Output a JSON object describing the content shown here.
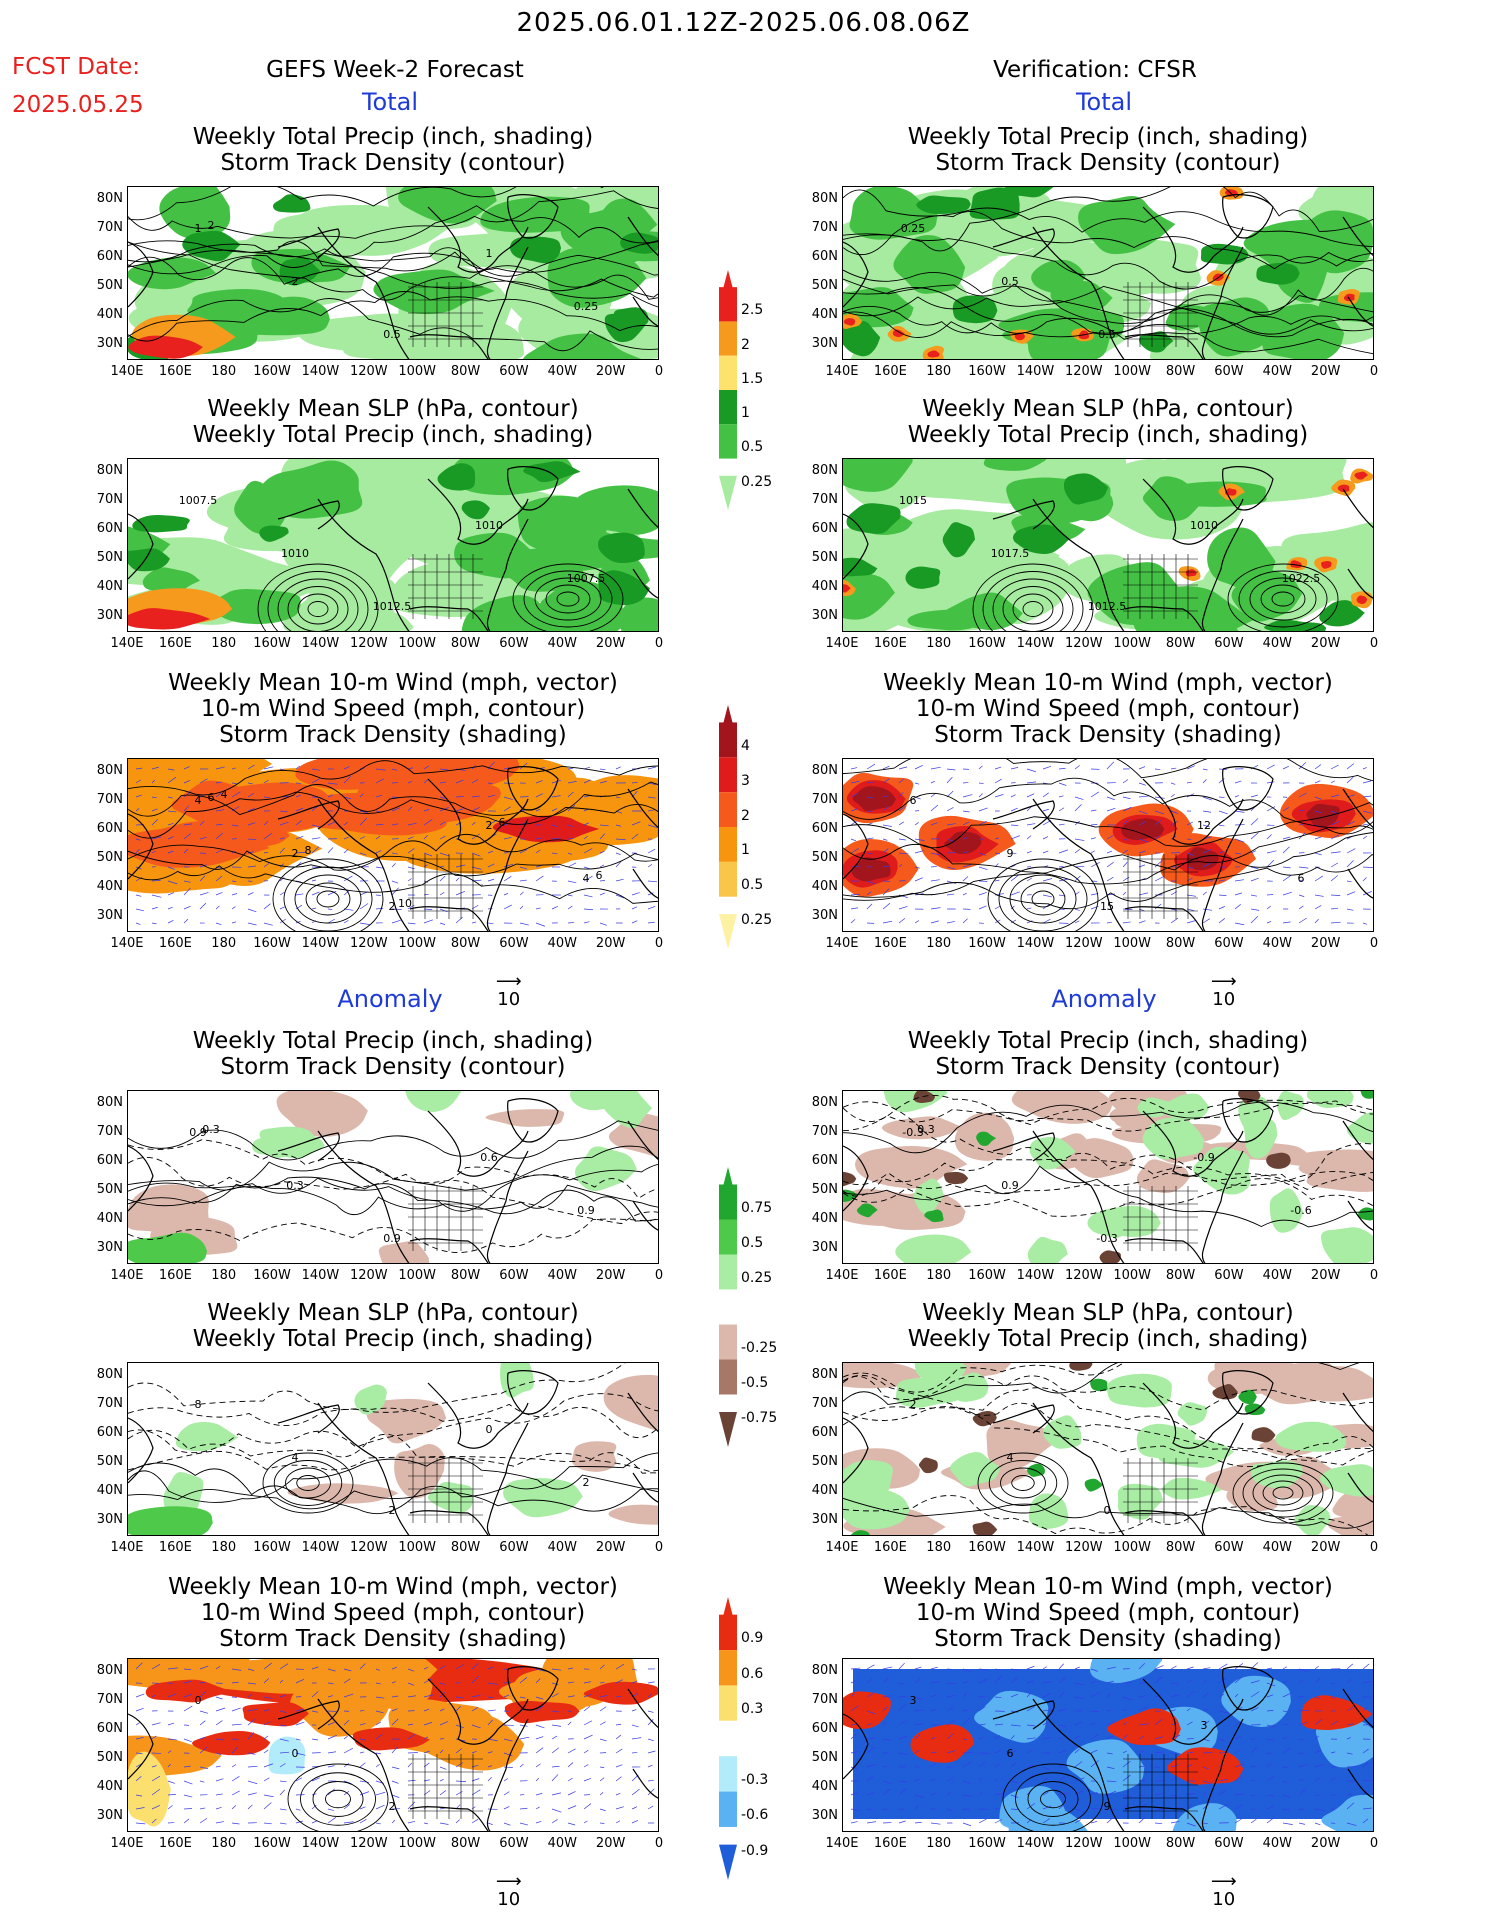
{
  "header": {
    "date_range": "2025.06.01.12Z-2025.06.08.06Z",
    "fcst_label": "FCST Date:",
    "fcst_date": "2025.05.25",
    "left_col_title": "GEFS Week-2 Forecast",
    "right_col_title": "Verification: CFSR"
  },
  "sections": {
    "total": "Total",
    "anomaly": "Anomaly"
  },
  "panel_titles": {
    "precip_storm": "Weekly Total Precip (inch, shading)\nStorm Track Density (contour)",
    "slp_precip": "Weekly Mean SLP (hPa, contour)\nWeekly Total Precip (inch, shading)",
    "wind_storm": "Weekly Mean 10-m Wind (mph, vector)\n10-m Wind Speed (mph, contour)\nStorm Track Density (shading)"
  },
  "axes": {
    "lat_labels": [
      "80N",
      "70N",
      "60N",
      "50N",
      "40N",
      "30N"
    ],
    "lon_labels": [
      "140E",
      "160E",
      "180",
      "160W",
      "140W",
      "120W",
      "100W",
      "80W",
      "60W",
      "40W",
      "20W",
      "0"
    ]
  },
  "vector_ref": "10",
  "colorbars": {
    "precip_total": {
      "labels": [
        "2.5",
        "2",
        "1.5",
        "1",
        "0.5",
        "0.25"
      ],
      "colors": [
        "#e8201e",
        "#f59a1c",
        "#fde36e",
        "#199a24",
        "#44c144",
        "#a7eba0"
      ]
    },
    "storm_total": {
      "labels": [
        "4",
        "3",
        "2",
        "1",
        "0.5",
        "0.25"
      ],
      "colors": [
        "#a2151c",
        "#e01b1b",
        "#f55a1c",
        "#f7950e",
        "#f9c64a",
        "#fdf1a4"
      ]
    },
    "precip_anom": {
      "labels": [
        "0.75",
        "0.5",
        "0.25",
        "-0.25",
        "-0.5",
        "-0.75"
      ],
      "colors": [
        "#21a62f",
        "#4ec94a",
        "#a9eca4",
        "#ffffff",
        "#dcb8ac",
        "#a77868",
        "#6a4336"
      ]
    },
    "storm_anom": {
      "labels": [
        "0.9",
        "0.6",
        "0.3",
        "-0.3",
        "-0.6",
        "-0.9"
      ],
      "colors": [
        "#e82c12",
        "#f7951a",
        "#fbe070",
        "#ffffff",
        "#b2ecfb",
        "#5ab2f2",
        "#1f5ed8"
      ]
    }
  },
  "contour_labels": {
    "f_precip": [
      "1",
      "2",
      "0.5",
      "1",
      "0.25",
      "2"
    ],
    "v_precip": [
      "0.25",
      "0.5",
      "0.5"
    ],
    "f_slp": [
      "1007.5",
      "1010",
      "1012.5",
      "1010",
      "1007.5"
    ],
    "v_slp": [
      "1015",
      "1017.5",
      "1012.5",
      "1010",
      "1022.5"
    ],
    "f_wind": [
      "4",
      "2",
      "2",
      "2",
      "4",
      "6",
      "8",
      "10",
      "6",
      "6",
      "4"
    ],
    "v_wind": [
      "6",
      "9",
      "15",
      "12",
      "6"
    ],
    "fa_precip": [
      "0.9",
      "0.3",
      "0.9",
      "0.6",
      "0.9",
      "0.3"
    ],
    "va_precip": [
      "-0.3",
      "0.9",
      "-0.3",
      "-0.9",
      "-0.6",
      "0.3"
    ],
    "fa_slp": [
      "8",
      "4",
      "2",
      "0",
      "2"
    ],
    "va_slp": [
      "2",
      "4",
      "0"
    ],
    "fa_wind": [
      "0",
      "0",
      "2"
    ],
    "va_wind": [
      "3",
      "6",
      "9",
      "3"
    ]
  }
}
